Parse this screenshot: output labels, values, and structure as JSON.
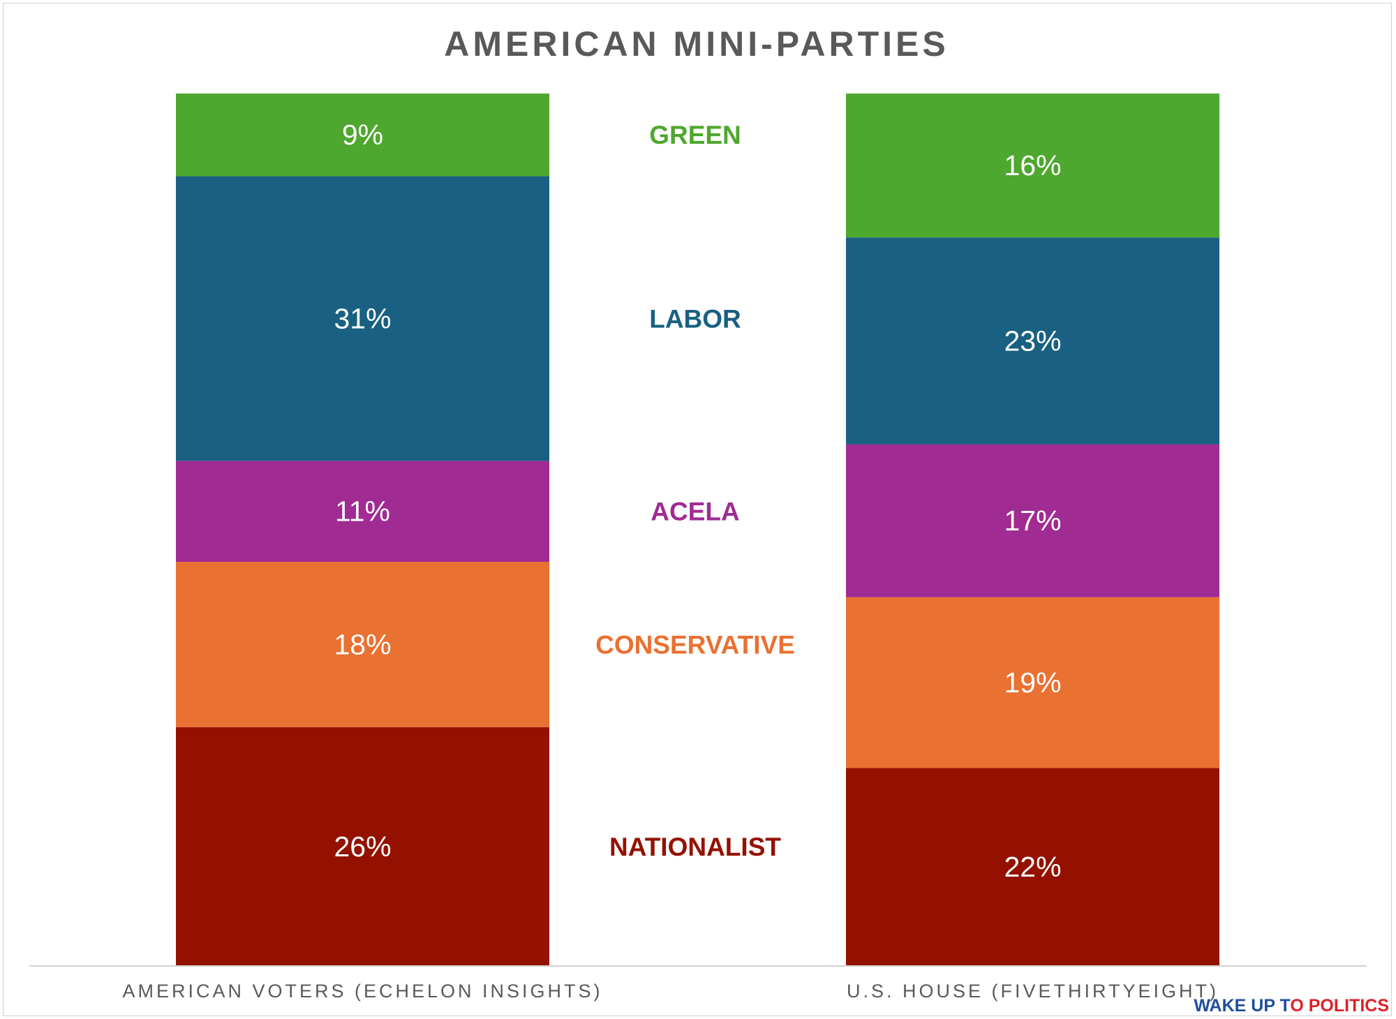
{
  "chart_data": {
    "type": "bar",
    "stacked": true,
    "normalized_percent": true,
    "title": "AMERICAN MINI-PARTIES",
    "categories": [
      "AMERICAN VOTERS (ECHELON INSIGHTS)",
      "U.S. HOUSE (FIVETHIRTYEIGHT)"
    ],
    "series": [
      {
        "name": "NATIONALIST",
        "color": "#941100",
        "values": [
          26,
          22
        ]
      },
      {
        "name": "CONSERVATIVE",
        "color": "#e97132",
        "values": [
          18,
          19
        ]
      },
      {
        "name": "ACELA",
        "color": "#a02b93",
        "values": [
          11,
          17
        ]
      },
      {
        "name": "LABOR",
        "color": "#196082",
        "values": [
          31,
          23
        ]
      },
      {
        "name": "GREEN",
        "color": "#4ea72e",
        "values": [
          9,
          16
        ]
      }
    ],
    "value_suffix": "%",
    "legend_placement": "between bars",
    "grid": false
  },
  "branding": {
    "part1": "WAKE UP T",
    "part2": "O",
    "part3": " POLITICS",
    "color_blue": "#1f4e9c",
    "color_red": "#e0202a"
  }
}
